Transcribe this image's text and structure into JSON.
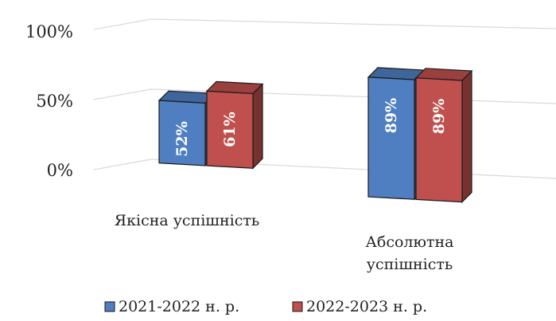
{
  "chart_data": {
    "type": "bar",
    "categories": [
      "Якісна успішність",
      "Абсолютна успішність"
    ],
    "category_lines": [
      [
        "Якісна успішність"
      ],
      [
        "Абсолютна",
        "успішність"
      ]
    ],
    "series": [
      {
        "name": "2021-2022 н. р.",
        "values": [
          52,
          89
        ],
        "color": "#4f7fc0"
      },
      {
        "name": "2022-2023 н. р.",
        "values": [
          61,
          89
        ],
        "color": "#c0504d"
      }
    ],
    "data_labels": [
      [
        "52%",
        "89%"
      ],
      [
        "61%",
        "89%"
      ]
    ],
    "y_ticks": [
      "0%",
      "50%",
      "100%"
    ],
    "ylim": [
      0,
      100
    ],
    "grid": true,
    "legend_position": "bottom",
    "style": "3d-clustered-column"
  }
}
